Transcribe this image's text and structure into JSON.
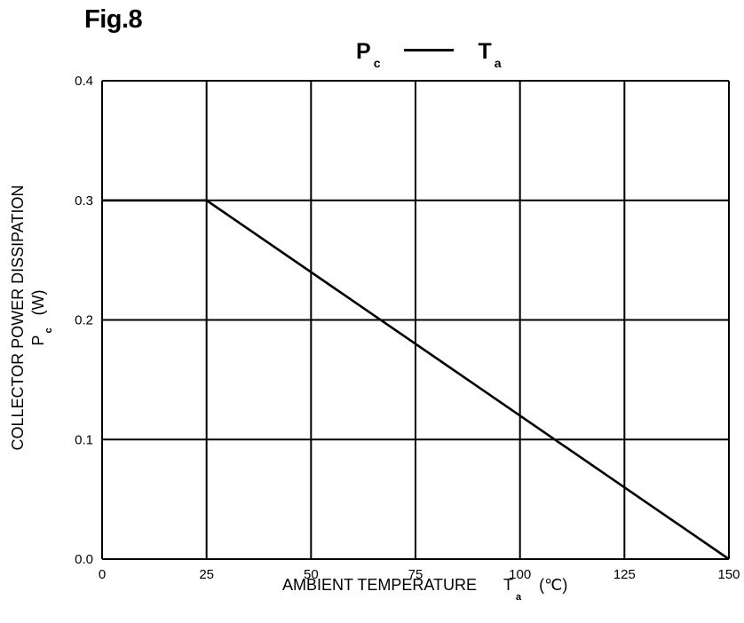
{
  "figure": {
    "label": "Fig.8",
    "legend": {
      "left_symbol": "P",
      "left_sub": "c",
      "right_symbol": "T",
      "right_sub": "a"
    }
  },
  "axes": {
    "ylabel_line1": "COLLECTOR POWER DISSIPATION",
    "ylabel_symbol": "P",
    "ylabel_sub": "c",
    "ylabel_unit": "(W)",
    "xlabel_text": "AMBIENT TEMPERATURE",
    "xlabel_symbol": "T",
    "xlabel_sub": "a",
    "xlabel_unit": "(℃)"
  },
  "colors": {
    "line": "#000000",
    "grid": "#000000",
    "background": "#ffffff"
  },
  "chart_data": {
    "type": "line",
    "title": "",
    "xlabel": "AMBIENT TEMPERATURE Ta (℃)",
    "ylabel": "COLLECTOR POWER DISSIPATION Pc (W)",
    "xlim": [
      0,
      150
    ],
    "ylim": [
      0.0,
      0.4
    ],
    "xticks": [
      0,
      25,
      50,
      75,
      100,
      125,
      150
    ],
    "yticks": [
      0.0,
      0.1,
      0.2,
      0.3,
      0.4
    ],
    "xtick_labels": [
      "0",
      "25",
      "50",
      "75",
      "100",
      "125",
      "150"
    ],
    "ytick_labels": [
      "0.0",
      "0.1",
      "0.2",
      "0.3",
      "0.4"
    ],
    "grid": true,
    "series": [
      {
        "x": [
          0,
          25,
          150
        ],
        "y": [
          0.3,
          0.3,
          0.0
        ]
      }
    ]
  }
}
